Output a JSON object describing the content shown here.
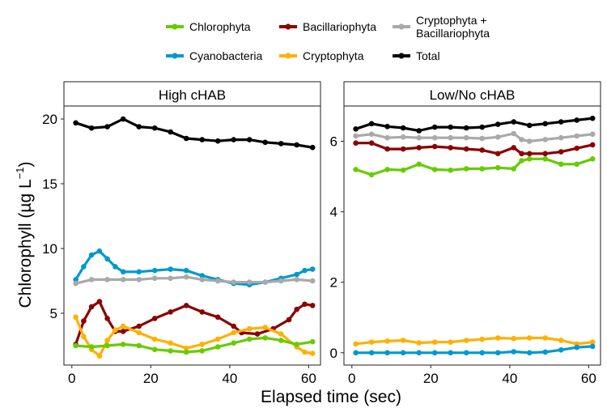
{
  "chart_data": {
    "type": "line",
    "xlabel": "Elapsed time (sec)",
    "ylabel": "Chlorophyll (µg L⁻¹)",
    "legend": {
      "placement": "top",
      "entries": [
        {
          "name": "Chlorophyta",
          "color": "#66CC00"
        },
        {
          "name": "Bacillariophyta",
          "color": "#8B0000"
        },
        {
          "name": "Cryptophyta + Bacillariophyta",
          "color": "#A9A9A9"
        },
        {
          "name": "Cyanobacteria",
          "color": "#0099CC"
        },
        {
          "name": "Cryptophyta",
          "color": "#FFB000"
        },
        {
          "name": "Total",
          "color": "#000000"
        }
      ]
    },
    "panels": [
      {
        "title": "High cHAB",
        "xlim": [
          -2,
          63
        ],
        "ylim": [
          1,
          21
        ],
        "xticks": [
          0,
          20,
          40,
          60
        ],
        "yticks": [
          5,
          10,
          15,
          20
        ],
        "series": [
          {
            "name": "Total",
            "color": "#000000",
            "x": [
              1,
              5,
              9,
              13,
              17,
              21,
              25,
              29,
              33,
              37,
              41,
              45,
              49,
              53,
              57,
              61
            ],
            "y": [
              19.7,
              19.3,
              19.4,
              20.0,
              19.4,
              19.3,
              19.0,
              18.5,
              18.4,
              18.3,
              18.4,
              18.4,
              18.2,
              18.1,
              18.0,
              17.8
            ]
          },
          {
            "name": "Cyanobacteria",
            "color": "#0099CC",
            "x": [
              1,
              3,
              5,
              7,
              9,
              11,
              13,
              17,
              21,
              25,
              29,
              33,
              37,
              41,
              45,
              49,
              53,
              57,
              59,
              61
            ],
            "y": [
              7.6,
              8.6,
              9.5,
              9.8,
              9.2,
              8.6,
              8.2,
              8.2,
              8.3,
              8.4,
              8.3,
              7.9,
              7.6,
              7.3,
              7.2,
              7.4,
              7.7,
              8.0,
              8.3,
              8.4
            ]
          },
          {
            "name": "Cryptophyta + Bacillariophyta",
            "color": "#A9A9A9",
            "x": [
              1,
              5,
              9,
              13,
              17,
              21,
              25,
              29,
              33,
              37,
              41,
              45,
              49,
              53,
              57,
              61
            ],
            "y": [
              7.3,
              7.6,
              7.6,
              7.6,
              7.6,
              7.7,
              7.7,
              7.8,
              7.6,
              7.5,
              7.4,
              7.4,
              7.4,
              7.5,
              7.6,
              7.5
            ]
          },
          {
            "name": "Bacillariophyta",
            "color": "#8B0000",
            "x": [
              1,
              3,
              5,
              7,
              9,
              11,
              13,
              17,
              21,
              25,
              29,
              33,
              37,
              41,
              43,
              47,
              51,
              55,
              57,
              59,
              61
            ],
            "y": [
              2.6,
              4.4,
              5.5,
              5.9,
              4.6,
              3.6,
              3.6,
              4.0,
              4.6,
              5.1,
              5.6,
              5.1,
              4.7,
              4.0,
              3.5,
              3.4,
              3.8,
              4.5,
              5.3,
              5.7,
              5.6
            ]
          },
          {
            "name": "Cryptophyta",
            "color": "#FFB000",
            "x": [
              1,
              3,
              5,
              7,
              9,
              11,
              13,
              17,
              21,
              25,
              29,
              33,
              37,
              41,
              45,
              49,
              53,
              57,
              59,
              61
            ],
            "y": [
              4.7,
              3.2,
              2.2,
              1.7,
              2.9,
              3.7,
              4.0,
              3.5,
              3.0,
              2.7,
              2.3,
              2.6,
              3.0,
              3.5,
              3.8,
              3.9,
              3.4,
              2.4,
              2.0,
              1.9
            ]
          },
          {
            "name": "Chlorophyta",
            "color": "#66CC00",
            "x": [
              1,
              5,
              9,
              13,
              17,
              21,
              25,
              29,
              33,
              37,
              41,
              45,
              49,
              53,
              57,
              61
            ],
            "y": [
              2.5,
              2.4,
              2.5,
              2.6,
              2.5,
              2.2,
              2.1,
              2.0,
              2.1,
              2.4,
              2.7,
              3.0,
              3.1,
              2.9,
              2.6,
              2.8
            ]
          }
        ]
      },
      {
        "title": "Low/No cHAB",
        "xlim": [
          -2,
          63
        ],
        "ylim": [
          -0.35,
          7.0
        ],
        "xticks": [
          0,
          20,
          40,
          60
        ],
        "yticks": [
          0,
          2,
          4,
          6
        ],
        "series": [
          {
            "name": "Total",
            "color": "#000000",
            "x": [
              1,
              5,
              9,
              13,
              17,
              21,
              25,
              29,
              33,
              37,
              41,
              45,
              49,
              53,
              57,
              61
            ],
            "y": [
              6.35,
              6.5,
              6.42,
              6.38,
              6.3,
              6.4,
              6.4,
              6.38,
              6.4,
              6.48,
              6.55,
              6.45,
              6.5,
              6.55,
              6.6,
              6.65
            ]
          },
          {
            "name": "Cryptophyta + Bacillariophyta",
            "color": "#A9A9A9",
            "x": [
              1,
              5,
              9,
              13,
              17,
              21,
              25,
              29,
              33,
              37,
              41,
              43,
              45,
              49,
              53,
              57,
              61
            ],
            "y": [
              6.15,
              6.2,
              6.1,
              6.12,
              6.1,
              6.1,
              6.1,
              6.1,
              6.08,
              6.12,
              6.22,
              6.05,
              6.0,
              6.05,
              6.1,
              6.15,
              6.2
            ]
          },
          {
            "name": "Bacillariophyta",
            "color": "#8B0000",
            "x": [
              1,
              5,
              9,
              13,
              17,
              21,
              25,
              29,
              33,
              37,
              41,
              43,
              45,
              49,
              53,
              57,
              61
            ],
            "y": [
              5.95,
              5.95,
              5.78,
              5.78,
              5.82,
              5.85,
              5.82,
              5.78,
              5.75,
              5.65,
              5.82,
              5.65,
              5.65,
              5.65,
              5.7,
              5.8,
              5.9
            ]
          },
          {
            "name": "Chlorophyta",
            "color": "#66CC00",
            "x": [
              1,
              5,
              9,
              13,
              17,
              21,
              25,
              29,
              33,
              37,
              41,
              43,
              45,
              49,
              53,
              57,
              61
            ],
            "y": [
              5.2,
              5.05,
              5.2,
              5.18,
              5.35,
              5.2,
              5.18,
              5.22,
              5.22,
              5.25,
              5.22,
              5.45,
              5.5,
              5.5,
              5.35,
              5.35,
              5.5
            ]
          },
          {
            "name": "Cryptophyta",
            "color": "#FFB000",
            "x": [
              1,
              5,
              9,
              13,
              17,
              21,
              25,
              29,
              33,
              37,
              41,
              45,
              49,
              53,
              57,
              61
            ],
            "y": [
              0.25,
              0.3,
              0.33,
              0.35,
              0.28,
              0.3,
              0.3,
              0.35,
              0.38,
              0.42,
              0.4,
              0.42,
              0.42,
              0.35,
              0.25,
              0.3
            ]
          },
          {
            "name": "Cyanobacteria",
            "color": "#0099CC",
            "x": [
              1,
              5,
              9,
              13,
              17,
              21,
              25,
              29,
              33,
              37,
              41,
              45,
              49,
              53,
              57,
              61
            ],
            "y": [
              0.0,
              0.0,
              0.0,
              0.0,
              0.0,
              0.0,
              0.0,
              0.0,
              0.0,
              0.0,
              0.03,
              0.0,
              0.02,
              0.08,
              0.15,
              0.18
            ]
          }
        ]
      }
    ]
  }
}
